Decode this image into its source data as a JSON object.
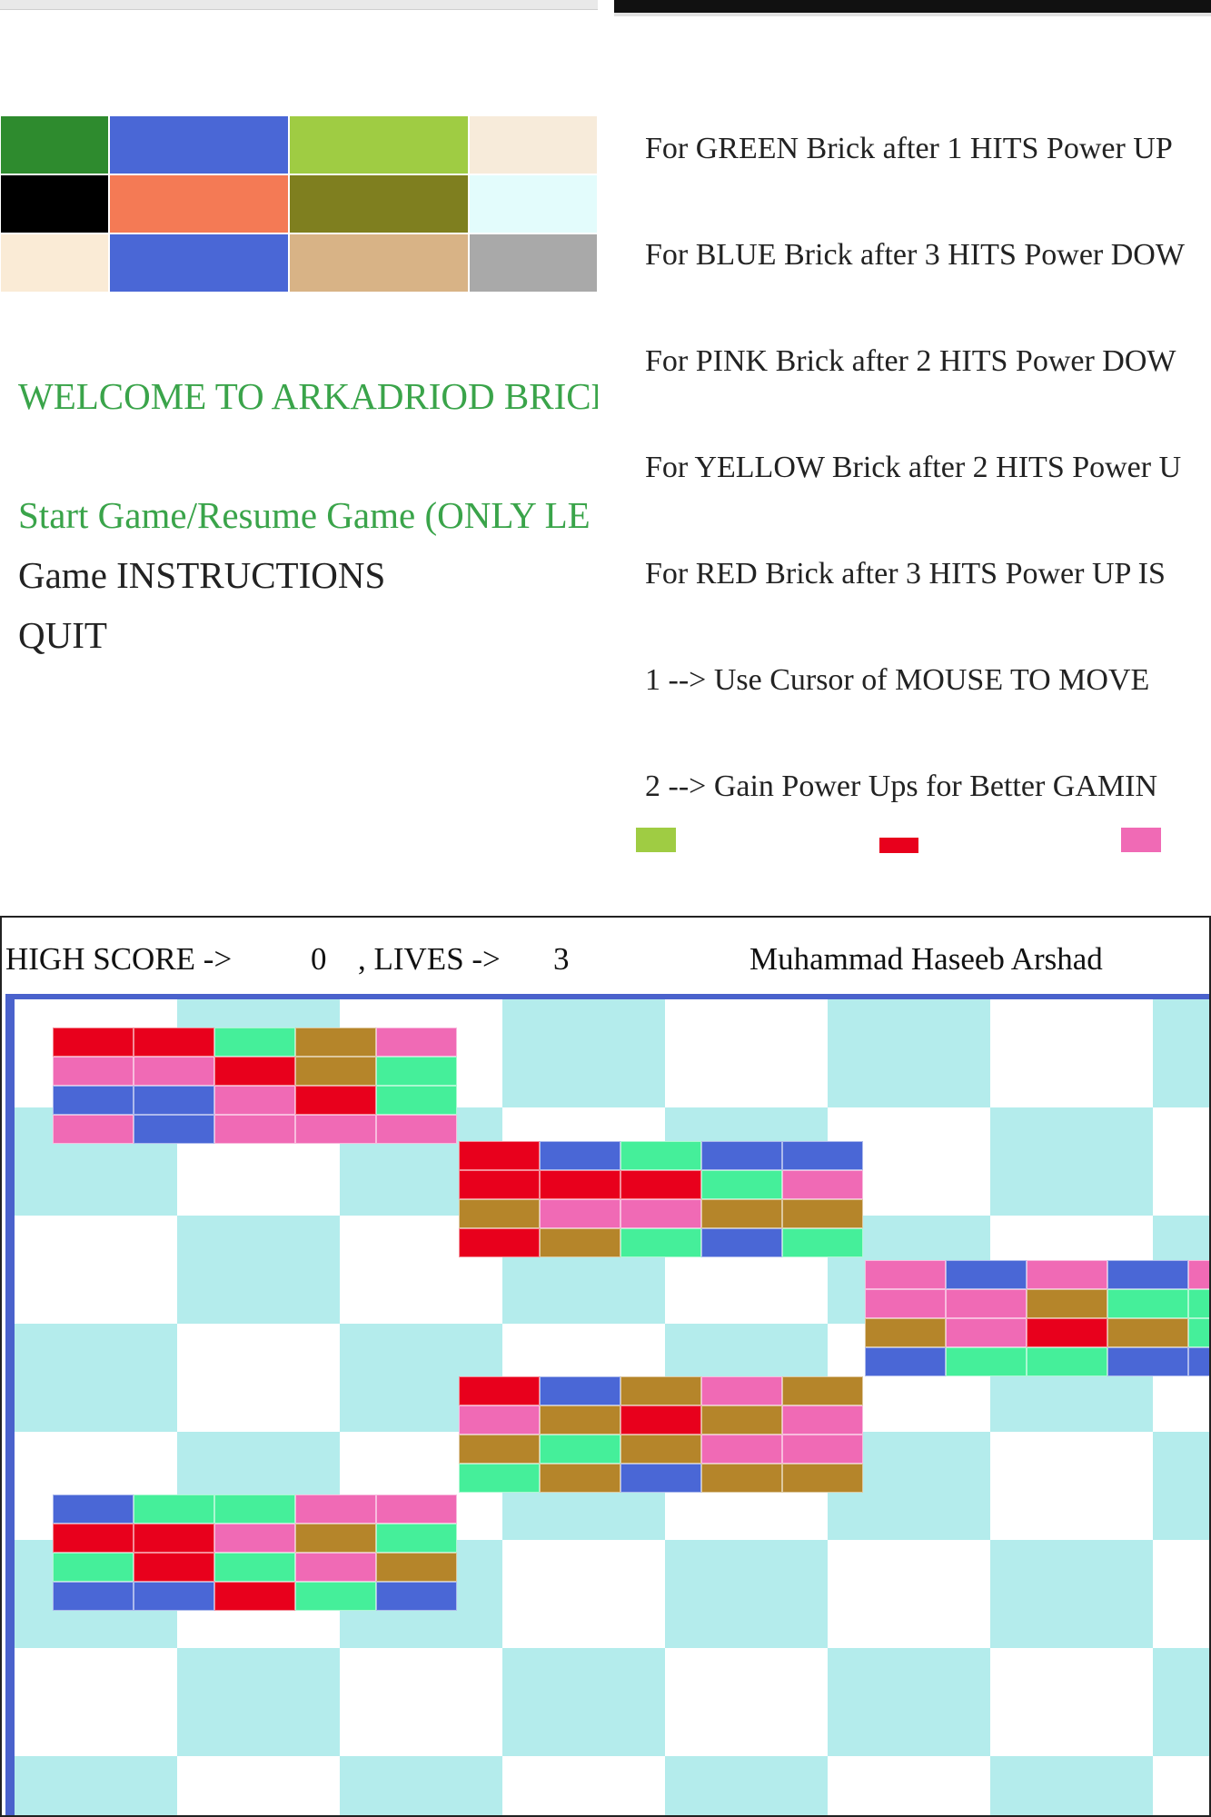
{
  "menu": {
    "brick_colors": [
      [
        "#2e8b2e",
        "#4a67d6",
        "#9fcc43",
        "#f7ebda"
      ],
      [
        "#000000",
        "#f47a55",
        "#7f7f1f",
        "#e3fcfc"
      ],
      [
        "#faebd6",
        "#4a67d6",
        "#d8b386",
        "#a9a9a9"
      ]
    ],
    "welcome": "WELCOME TO ARKADRIOD BRICK",
    "start_game": "Start Game/Resume Game (ONLY LE",
    "instructions": "Game INSTRUCTIONS",
    "quit": "QUIT",
    "colors": {
      "welcome": "#3aa44a",
      "start": "#3aa44a",
      "default": "#222222"
    }
  },
  "instructions": {
    "lines": [
      "For GREEN Brick after 1 HITS Power UP",
      "For BLUE Brick after 3 HITS Power DOW",
      "For PINK Brick after 2 HITS Power DOW",
      "For YELLOW Brick after 2 HITS Power U",
      "For RED Brick after 3 HITS Power UP IS",
      "1 --> Use Cursor of MOUSE TO MOVE",
      "2 --> Gain Power Ups for Better GAMIN"
    ],
    "powerups": [
      {
        "icon": "green-powerup-icon",
        "color": "#9fcc43"
      },
      {
        "icon": "red-powerup-icon",
        "color": "#e8001c"
      },
      {
        "icon": "pink-powerup-icon",
        "color": "#f06ab5"
      }
    ]
  },
  "game": {
    "hud": {
      "high_score_label": "HIGH SCORE ->",
      "high_score": "0",
      "lives_label": ", LIVES ->",
      "lives": "3",
      "author": "Muhammad Haseeb Arshad"
    },
    "colors": {
      "red": "#e8001c",
      "pink": "#f06ab5",
      "green": "#45ef9a",
      "brown": "#b5852a",
      "blue": "#4a67d6",
      "tile": "#b4ecec",
      "border": "#4a62cc"
    },
    "brick_blocks": [
      {
        "rows": [
          [
            "red",
            "red",
            "green",
            "brown",
            "pink"
          ],
          [
            "pink",
            "pink",
            "red",
            "brown",
            "green"
          ],
          [
            "blue",
            "blue",
            "pink",
            "red",
            "green"
          ],
          [
            "pink",
            "blue",
            "pink",
            "pink",
            "pink"
          ]
        ]
      },
      {
        "rows": [
          [
            "red",
            "blue",
            "green",
            "blue",
            "blue"
          ],
          [
            "red",
            "red",
            "red",
            "green",
            "pink"
          ],
          [
            "brown",
            "pink",
            "pink",
            "brown",
            "brown"
          ],
          [
            "red",
            "brown",
            "green",
            "blue",
            "green"
          ]
        ]
      },
      {
        "rows": [
          [
            "pink",
            "blue",
            "pink",
            "blue",
            "pink"
          ],
          [
            "pink",
            "pink",
            "brown",
            "green",
            "green"
          ],
          [
            "brown",
            "pink",
            "red",
            "brown",
            "green"
          ],
          [
            "blue",
            "green",
            "green",
            "blue",
            "blue"
          ]
        ]
      },
      {
        "rows": [
          [
            "red",
            "blue",
            "brown",
            "pink",
            "brown"
          ],
          [
            "pink",
            "brown",
            "red",
            "brown",
            "pink"
          ],
          [
            "brown",
            "green",
            "brown",
            "pink",
            "pink"
          ],
          [
            "green",
            "brown",
            "blue",
            "brown",
            "brown"
          ]
        ]
      },
      {
        "rows": [
          [
            "blue",
            "green",
            "green",
            "pink",
            "pink"
          ],
          [
            "red",
            "red",
            "pink",
            "brown",
            "green"
          ],
          [
            "green",
            "red",
            "green",
            "pink",
            "brown"
          ],
          [
            "blue",
            "blue",
            "red",
            "green",
            "blue"
          ]
        ]
      }
    ]
  }
}
